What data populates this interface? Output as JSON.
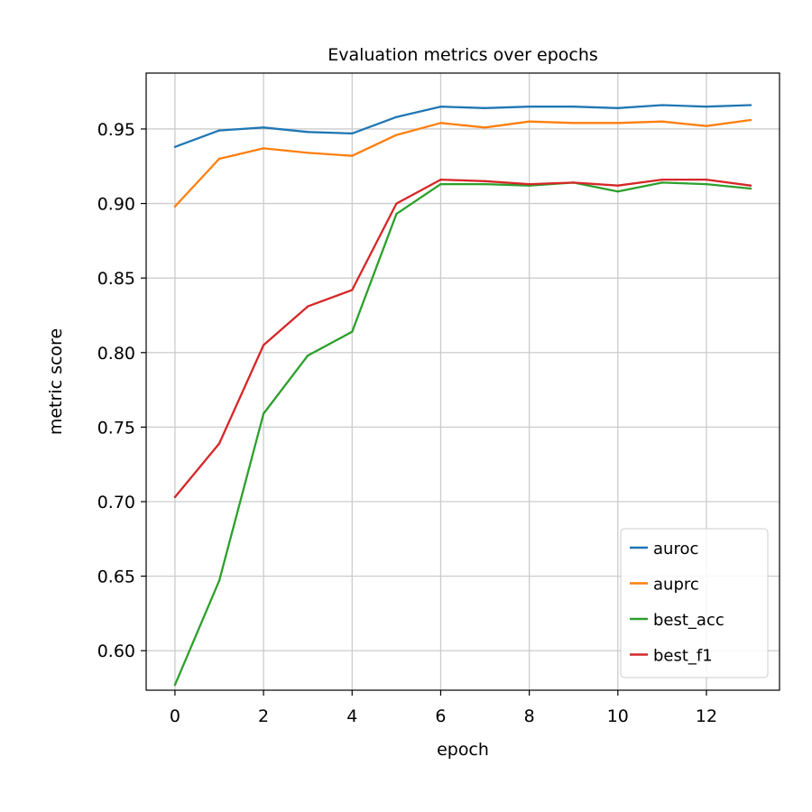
{
  "chart_data": {
    "type": "line",
    "title": "Evaluation metrics over epochs",
    "xlabel": "epoch",
    "ylabel": "metric score",
    "xlim": [
      -0.65,
      13.65
    ],
    "ylim": [
      0.5735,
      0.9875
    ],
    "grid": true,
    "legend_position": "lower-right",
    "x": [
      0,
      1,
      2,
      3,
      4,
      5,
      6,
      7,
      8,
      9,
      10,
      11,
      12,
      13
    ],
    "xticks": [
      0,
      2,
      4,
      6,
      8,
      10,
      12
    ],
    "xtick_labels": [
      "0",
      "2",
      "4",
      "6",
      "8",
      "10",
      "12"
    ],
    "yticks": [
      0.6,
      0.65,
      0.7,
      0.75,
      0.8,
      0.85,
      0.9,
      0.95
    ],
    "ytick_labels": [
      "0.60",
      "0.65",
      "0.70",
      "0.75",
      "0.80",
      "0.85",
      "0.90",
      "0.95"
    ],
    "series": [
      {
        "name": "auroc",
        "color": "#1f77b4",
        "values": [
          0.938,
          0.949,
          0.951,
          0.948,
          0.947,
          0.958,
          0.965,
          0.964,
          0.965,
          0.965,
          0.964,
          0.966,
          0.965,
          0.966
        ]
      },
      {
        "name": "auprc",
        "color": "#ff7f0e",
        "values": [
          0.898,
          0.93,
          0.937,
          0.934,
          0.932,
          0.946,
          0.954,
          0.951,
          0.955,
          0.954,
          0.954,
          0.955,
          0.952,
          0.956
        ]
      },
      {
        "name": "best_acc",
        "color": "#2ca02c",
        "values": [
          0.577,
          0.647,
          0.759,
          0.798,
          0.814,
          0.893,
          0.913,
          0.913,
          0.912,
          0.914,
          0.908,
          0.914,
          0.913,
          0.91
        ]
      },
      {
        "name": "best_f1",
        "color": "#d62728",
        "values": [
          0.703,
          0.739,
          0.805,
          0.831,
          0.842,
          0.9,
          0.916,
          0.915,
          0.913,
          0.914,
          0.912,
          0.916,
          0.916,
          0.912
        ]
      }
    ]
  }
}
